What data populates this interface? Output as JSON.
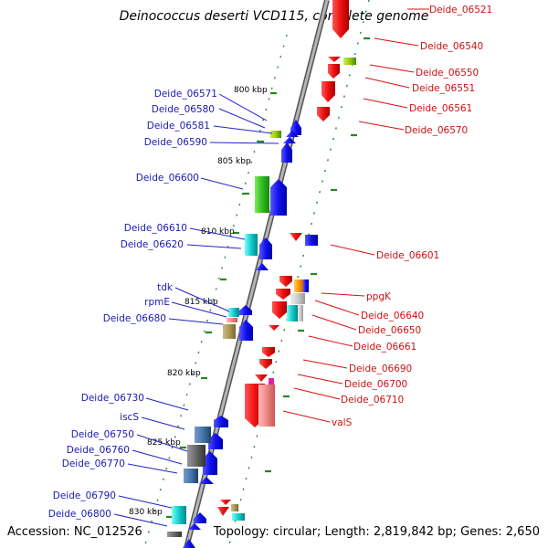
{
  "title": "Deinococcus deserti VCD115, complete genome",
  "footer": {
    "accession": "Accession: NC_012526",
    "topology": "Topology: circular; Length: 2,819,842 bp; Genes: 2,650"
  },
  "scale_labels": [
    "800 kbp",
    "805 kbp",
    "810 kbp",
    "815 kbp",
    "820 kbp",
    "825 kbp",
    "830 kbp"
  ],
  "genes_left": [
    "Deide_06571",
    "Deide_06580",
    "Deide_06581",
    "Deide_06590",
    "Deide_06600",
    "Deide_06610",
    "Deide_06620",
    "tdk",
    "rpmE",
    "Deide_06680",
    "Deide_06730",
    "iscS",
    "Deide_06750",
    "Deide_06760",
    "Deide_06770",
    "Deide_06790",
    "Deide_06800"
  ],
  "genes_right": [
    "Deide_06521",
    "Deide_06540",
    "Deide_06550",
    "Deide_06551",
    "Deide_06561",
    "Deide_06570",
    "Deide_06601",
    "ppgK",
    "Deide_06640",
    "Deide_06650",
    "Deide_06661",
    "Deide_06690",
    "Deide_06700",
    "Deide_06710",
    "valS"
  ],
  "colors": {
    "forward_strand": "#1111ee",
    "reverse_strand": "#ee1111",
    "left_label": "#1a1ab0",
    "right_label": "#cc1111",
    "tick": "#228822",
    "backbone": "#8a8a8a"
  }
}
